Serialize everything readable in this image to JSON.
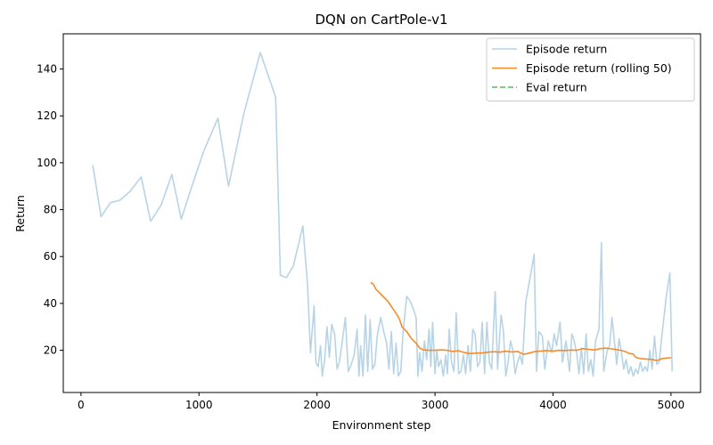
{
  "chart_data": {
    "type": "line",
    "title": "DQN on CartPole-v1",
    "xlabel": "Environment step",
    "ylabel": "Return",
    "xlim": [
      -150,
      5250
    ],
    "ylim": [
      2,
      155
    ],
    "xticks": [
      0,
      1000,
      2000,
      3000,
      4000,
      5000
    ],
    "yticks": [
      20,
      40,
      60,
      80,
      100,
      120,
      140
    ],
    "grid": false,
    "legend_position": "top-right",
    "series": [
      {
        "name": "Episode return",
        "color": "#b7d4e6",
        "style": "solid",
        "points": [
          [
            100,
            99
          ],
          [
            170,
            77
          ],
          [
            250,
            83
          ],
          [
            330,
            84
          ],
          [
            420,
            88
          ],
          [
            510,
            94
          ],
          [
            590,
            75
          ],
          [
            680,
            82
          ],
          [
            770,
            95
          ],
          [
            850,
            76
          ],
          [
            940,
            90
          ],
          [
            1040,
            105
          ],
          [
            1160,
            119
          ],
          [
            1250,
            90
          ],
          [
            1380,
            121
          ],
          [
            1520,
            147
          ],
          [
            1650,
            128
          ],
          [
            1690,
            52
          ],
          [
            1740,
            51
          ],
          [
            1800,
            56
          ],
          [
            1880,
            73
          ],
          [
            1920,
            48
          ],
          [
            1945,
            19
          ],
          [
            1975,
            39
          ],
          [
            1990,
            15
          ],
          [
            2010,
            13
          ],
          [
            2030,
            22
          ],
          [
            2045,
            9
          ],
          [
            2065,
            16
          ],
          [
            2085,
            30
          ],
          [
            2105,
            17
          ],
          [
            2125,
            31
          ],
          [
            2150,
            27
          ],
          [
            2170,
            12
          ],
          [
            2190,
            15
          ],
          [
            2215,
            24
          ],
          [
            2240,
            34
          ],
          [
            2265,
            11
          ],
          [
            2290,
            14
          ],
          [
            2315,
            18
          ],
          [
            2340,
            29
          ],
          [
            2355,
            9
          ],
          [
            2370,
            22
          ],
          [
            2390,
            9
          ],
          [
            2410,
            35
          ],
          [
            2430,
            11
          ],
          [
            2450,
            33
          ],
          [
            2470,
            12
          ],
          [
            2490,
            14
          ],
          [
            2510,
            26
          ],
          [
            2540,
            34
          ],
          [
            2565,
            28
          ],
          [
            2590,
            23
          ],
          [
            2610,
            12
          ],
          [
            2630,
            28
          ],
          [
            2650,
            10
          ],
          [
            2670,
            23
          ],
          [
            2690,
            9
          ],
          [
            2710,
            11
          ],
          [
            2730,
            28
          ],
          [
            2760,
            43
          ],
          [
            2790,
            41
          ],
          [
            2820,
            37
          ],
          [
            2840,
            34
          ],
          [
            2855,
            9
          ],
          [
            2870,
            19
          ],
          [
            2890,
            11
          ],
          [
            2910,
            24
          ],
          [
            2930,
            16
          ],
          [
            2950,
            29
          ],
          [
            2965,
            13
          ],
          [
            2980,
            32
          ],
          [
            3000,
            10
          ],
          [
            3015,
            20
          ],
          [
            3030,
            13
          ],
          [
            3050,
            16
          ],
          [
            3070,
            9
          ],
          [
            3090,
            18
          ],
          [
            3105,
            10
          ],
          [
            3120,
            29
          ],
          [
            3140,
            15
          ],
          [
            3160,
            11
          ],
          [
            3180,
            36
          ],
          [
            3200,
            10
          ],
          [
            3220,
            11
          ],
          [
            3240,
            18
          ],
          [
            3260,
            10
          ],
          [
            3280,
            22
          ],
          [
            3300,
            11
          ],
          [
            3320,
            29
          ],
          [
            3340,
            27
          ],
          [
            3360,
            13
          ],
          [
            3380,
            15
          ],
          [
            3400,
            32
          ],
          [
            3420,
            10
          ],
          [
            3440,
            32
          ],
          [
            3460,
            15
          ],
          [
            3480,
            12
          ],
          [
            3510,
            45
          ],
          [
            3530,
            12
          ],
          [
            3560,
            35
          ],
          [
            3580,
            28
          ],
          [
            3600,
            9
          ],
          [
            3620,
            15
          ],
          [
            3640,
            24
          ],
          [
            3660,
            20
          ],
          [
            3680,
            10
          ],
          [
            3700,
            15
          ],
          [
            3720,
            18
          ],
          [
            3740,
            14
          ],
          [
            3770,
            41
          ],
          [
            3810,
            52
          ],
          [
            3840,
            61
          ],
          [
            3860,
            11
          ],
          [
            3880,
            28
          ],
          [
            3910,
            26
          ],
          [
            3930,
            12
          ],
          [
            3960,
            24
          ],
          [
            3990,
            19
          ],
          [
            4010,
            27
          ],
          [
            4030,
            22
          ],
          [
            4060,
            32
          ],
          [
            4080,
            15
          ],
          [
            4110,
            24
          ],
          [
            4140,
            11
          ],
          [
            4160,
            27
          ],
          [
            4180,
            24
          ],
          [
            4200,
            19
          ],
          [
            4220,
            10
          ],
          [
            4240,
            21
          ],
          [
            4260,
            10
          ],
          [
            4280,
            27
          ],
          [
            4300,
            11
          ],
          [
            4320,
            16
          ],
          [
            4340,
            9
          ],
          [
            4360,
            24
          ],
          [
            4390,
            29
          ],
          [
            4410,
            66
          ],
          [
            4430,
            11
          ],
          [
            4460,
            20
          ],
          [
            4480,
            22
          ],
          [
            4500,
            34
          ],
          [
            4520,
            24
          ],
          [
            4540,
            14
          ],
          [
            4560,
            25
          ],
          [
            4580,
            19
          ],
          [
            4600,
            12
          ],
          [
            4620,
            16
          ],
          [
            4640,
            10
          ],
          [
            4660,
            13
          ],
          [
            4680,
            9
          ],
          [
            4700,
            12
          ],
          [
            4720,
            10
          ],
          [
            4740,
            15
          ],
          [
            4760,
            11
          ],
          [
            4780,
            13
          ],
          [
            4800,
            11
          ],
          [
            4820,
            20
          ],
          [
            4840,
            12
          ],
          [
            4860,
            26
          ],
          [
            4880,
            14
          ],
          [
            4900,
            15
          ],
          [
            4920,
            25
          ],
          [
            4960,
            43
          ],
          [
            4990,
            53
          ],
          [
            5010,
            11
          ]
        ]
      },
      {
        "name": "Episode return (rolling 50)",
        "color": "#f58b2b",
        "style": "solid",
        "points": [
          [
            2455,
            49
          ],
          [
            2480,
            48
          ],
          [
            2500,
            46
          ],
          [
            2520,
            45
          ],
          [
            2560,
            43
          ],
          [
            2600,
            41
          ],
          [
            2640,
            38
          ],
          [
            2680,
            35
          ],
          [
            2700,
            33
          ],
          [
            2720,
            30
          ],
          [
            2760,
            28
          ],
          [
            2800,
            25
          ],
          [
            2840,
            23
          ],
          [
            2870,
            21
          ],
          [
            2900,
            20.2
          ],
          [
            2950,
            20
          ],
          [
            3000,
            20
          ],
          [
            3050,
            20.2
          ],
          [
            3100,
            20
          ],
          [
            3150,
            19.5
          ],
          [
            3200,
            19.8
          ],
          [
            3250,
            19
          ],
          [
            3300,
            18.6
          ],
          [
            3350,
            18.8
          ],
          [
            3400,
            18.8
          ],
          [
            3450,
            19.2
          ],
          [
            3500,
            19.4
          ],
          [
            3550,
            19.2
          ],
          [
            3600,
            19.6
          ],
          [
            3650,
            19.3
          ],
          [
            3700,
            19.5
          ],
          [
            3750,
            18.3
          ],
          [
            3800,
            18.8
          ],
          [
            3850,
            19.5
          ],
          [
            3900,
            19.7
          ],
          [
            3950,
            19.9
          ],
          [
            4000,
            19.6
          ],
          [
            4050,
            20
          ],
          [
            4100,
            19.9
          ],
          [
            4150,
            20.1
          ],
          [
            4200,
            20
          ],
          [
            4250,
            20.7
          ],
          [
            4300,
            20.4
          ],
          [
            4350,
            20.1
          ],
          [
            4400,
            20.7
          ],
          [
            4450,
            20.9
          ],
          [
            4500,
            20.6
          ],
          [
            4550,
            20.2
          ],
          [
            4600,
            19.7
          ],
          [
            4650,
            18.6
          ],
          [
            4680,
            18.4
          ],
          [
            4700,
            17
          ],
          [
            4750,
            16.4
          ],
          [
            4800,
            16.2
          ],
          [
            4850,
            16
          ],
          [
            4880,
            15.6
          ],
          [
            4920,
            16.4
          ],
          [
            4960,
            16.7
          ],
          [
            5000,
            16.8
          ]
        ]
      },
      {
        "name": "Eval return",
        "color": "#5bb85b",
        "style": "dashed",
        "points": []
      }
    ]
  }
}
